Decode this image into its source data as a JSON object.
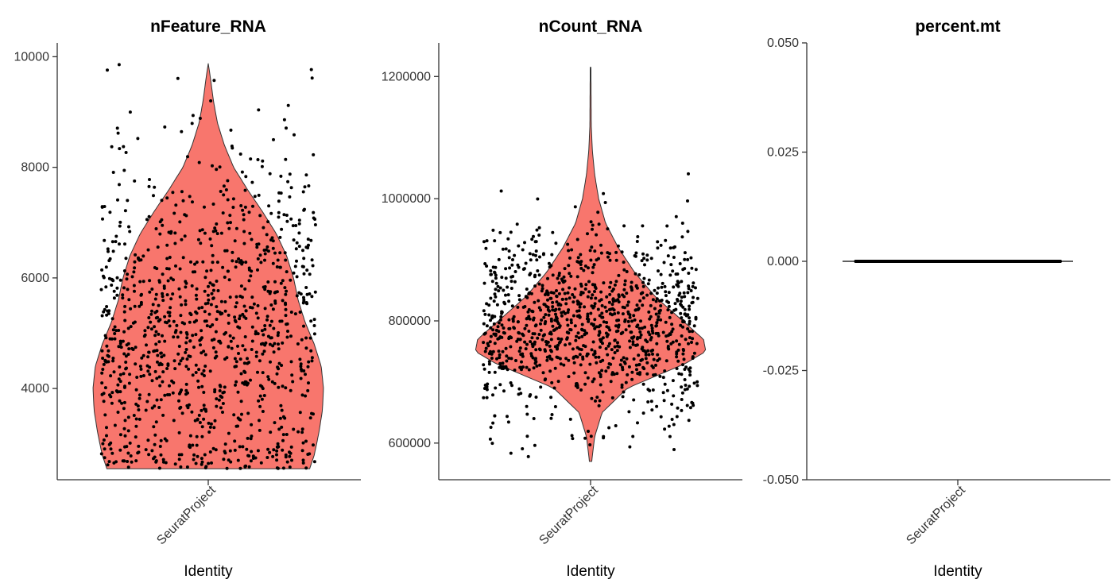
{
  "chart_data": [
    {
      "type": "violin",
      "title": "nFeature_RNA",
      "xlabel": "Identity",
      "ylabel": "",
      "categories": [
        "SeuratProject"
      ],
      "ylim": [
        2350,
        10250
      ],
      "yticks": [
        4000,
        6000,
        8000,
        10000
      ],
      "ytick_labels": [
        "4000",
        "6000",
        "8000",
        "10000"
      ],
      "data_range": [
        2550,
        9880
      ],
      "density": [
        [
          2550,
          0.88
        ],
        [
          2800,
          0.92
        ],
        [
          3200,
          0.96
        ],
        [
          3600,
          0.99
        ],
        [
          4000,
          1.0
        ],
        [
          4400,
          0.98
        ],
        [
          4800,
          0.92
        ],
        [
          5200,
          0.84
        ],
        [
          5600,
          0.78
        ],
        [
          6000,
          0.74
        ],
        [
          6400,
          0.68
        ],
        [
          6800,
          0.59
        ],
        [
          7200,
          0.47
        ],
        [
          7600,
          0.34
        ],
        [
          8000,
          0.22
        ],
        [
          8400,
          0.14
        ],
        [
          8800,
          0.08
        ],
        [
          9200,
          0.045
        ],
        [
          9600,
          0.02
        ],
        [
          9880,
          0
        ]
      ],
      "n_points": 1100,
      "point_distribution": {
        "mean": 5000,
        "sd": 1650
      },
      "fill_color": "#F8766D",
      "grid": false,
      "legend": "none"
    },
    {
      "type": "violin",
      "title": "nCount_RNA",
      "xlabel": "Identity",
      "ylabel": "",
      "categories": [
        "SeuratProject"
      ],
      "ylim": [
        540000,
        1255000
      ],
      "yticks": [
        600000,
        800000,
        1000000,
        1200000
      ],
      "ytick_labels": [
        "600000",
        "800000",
        "1000000",
        "1200000"
      ],
      "data_range": [
        570000,
        1215000
      ],
      "density": [
        [
          570000,
          0.01
        ],
        [
          610000,
          0.035
        ],
        [
          650000,
          0.1
        ],
        [
          690000,
          0.32
        ],
        [
          730000,
          0.82
        ],
        [
          750000,
          1.0
        ],
        [
          770000,
          0.98
        ],
        [
          800000,
          0.8
        ],
        [
          840000,
          0.56
        ],
        [
          880000,
          0.38
        ],
        [
          920000,
          0.24
        ],
        [
          960000,
          0.13
        ],
        [
          1000000,
          0.07
        ],
        [
          1040000,
          0.035
        ],
        [
          1080000,
          0.015
        ],
        [
          1120000,
          0.006
        ],
        [
          1215000,
          0.003
        ]
      ],
      "n_points": 1100,
      "point_distribution": {
        "mean": 790000,
        "sd": 75000
      },
      "fill_color": "#F8766D",
      "grid": false,
      "legend": "none"
    },
    {
      "type": "violin",
      "title": "percent.mt",
      "xlabel": "Identity",
      "ylabel": "",
      "categories": [
        "SeuratProject"
      ],
      "ylim": [
        -0.05,
        0.05
      ],
      "yticks": [
        -0.05,
        -0.025,
        0,
        0.025,
        0.05
      ],
      "ytick_labels": [
        "-0.050",
        "-0.025",
        "0.000",
        "0.025",
        "0.050"
      ],
      "all_values": 0,
      "n_points": 1100,
      "fill_color": "#F8766D",
      "grid": false,
      "legend": "none"
    }
  ]
}
